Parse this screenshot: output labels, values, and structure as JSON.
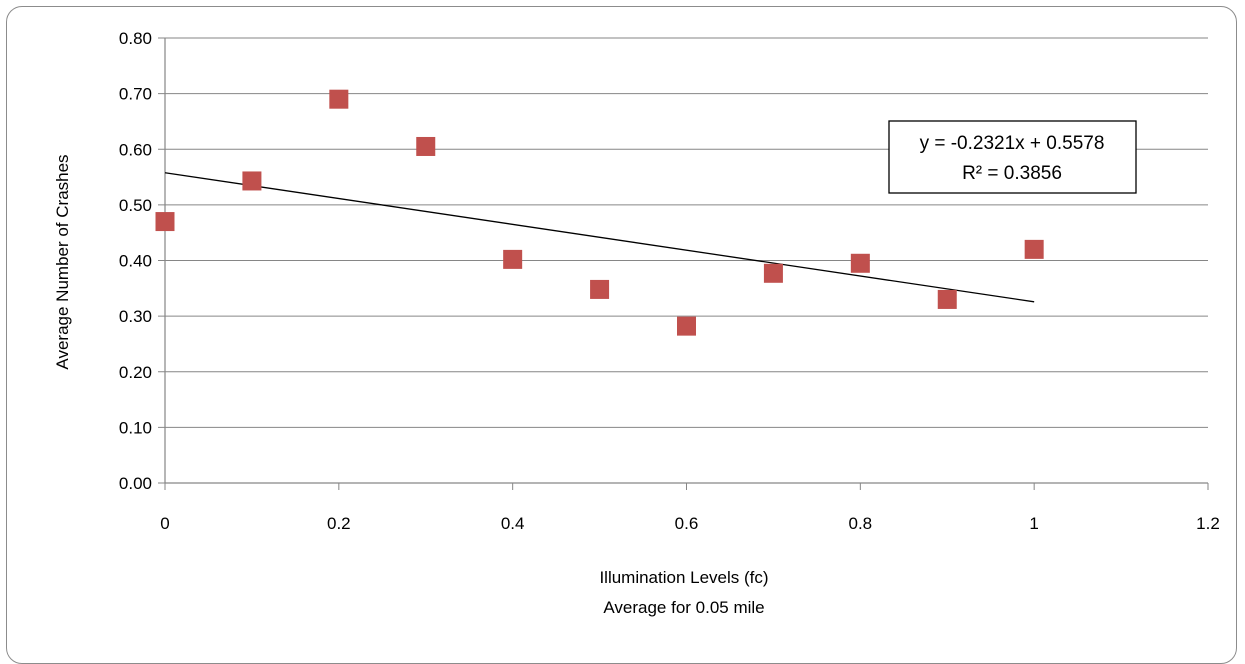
{
  "chart_data": {
    "type": "scatter",
    "title": "",
    "xlabel": "Illumination Levels (fc)",
    "xlabel_line2": "Average for 0.05 mile",
    "ylabel": "Average Number of Crashes",
    "xlim": [
      0,
      1.2
    ],
    "ylim": [
      0,
      0.8
    ],
    "x_ticks": [
      0,
      0.2,
      0.4,
      0.6,
      0.8,
      1,
      1.2
    ],
    "x_tick_labels": [
      "0",
      "0.2",
      "0.4",
      "0.6",
      "0.8",
      "1",
      "1.2"
    ],
    "y_ticks": [
      0,
      0.1,
      0.2,
      0.3,
      0.4,
      0.5,
      0.6,
      0.7,
      0.8
    ],
    "y_tick_labels": [
      "0.00",
      "0.10",
      "0.20",
      "0.30",
      "0.40",
      "0.50",
      "0.60",
      "0.70",
      "0.80"
    ],
    "grid": true,
    "series": [
      {
        "x": [
          0,
          0.1,
          0.2,
          0.3,
          0.4,
          0.5,
          0.6,
          0.7,
          0.8,
          0.9,
          1.0
        ],
        "y": [
          0.47,
          0.543,
          0.69,
          0.605,
          0.402,
          0.348,
          0.282,
          0.377,
          0.395,
          0.33,
          0.42
        ],
        "color": "#c0504d"
      }
    ],
    "trendline": {
      "type": "linear",
      "slope": -0.2321,
      "intercept": 0.5578,
      "x_range": [
        0,
        1.0
      ],
      "color": "#000000"
    },
    "annotation": {
      "equation": "y = -0.2321x + 0.5578",
      "r_squared": "R² = 0.3856"
    }
  }
}
